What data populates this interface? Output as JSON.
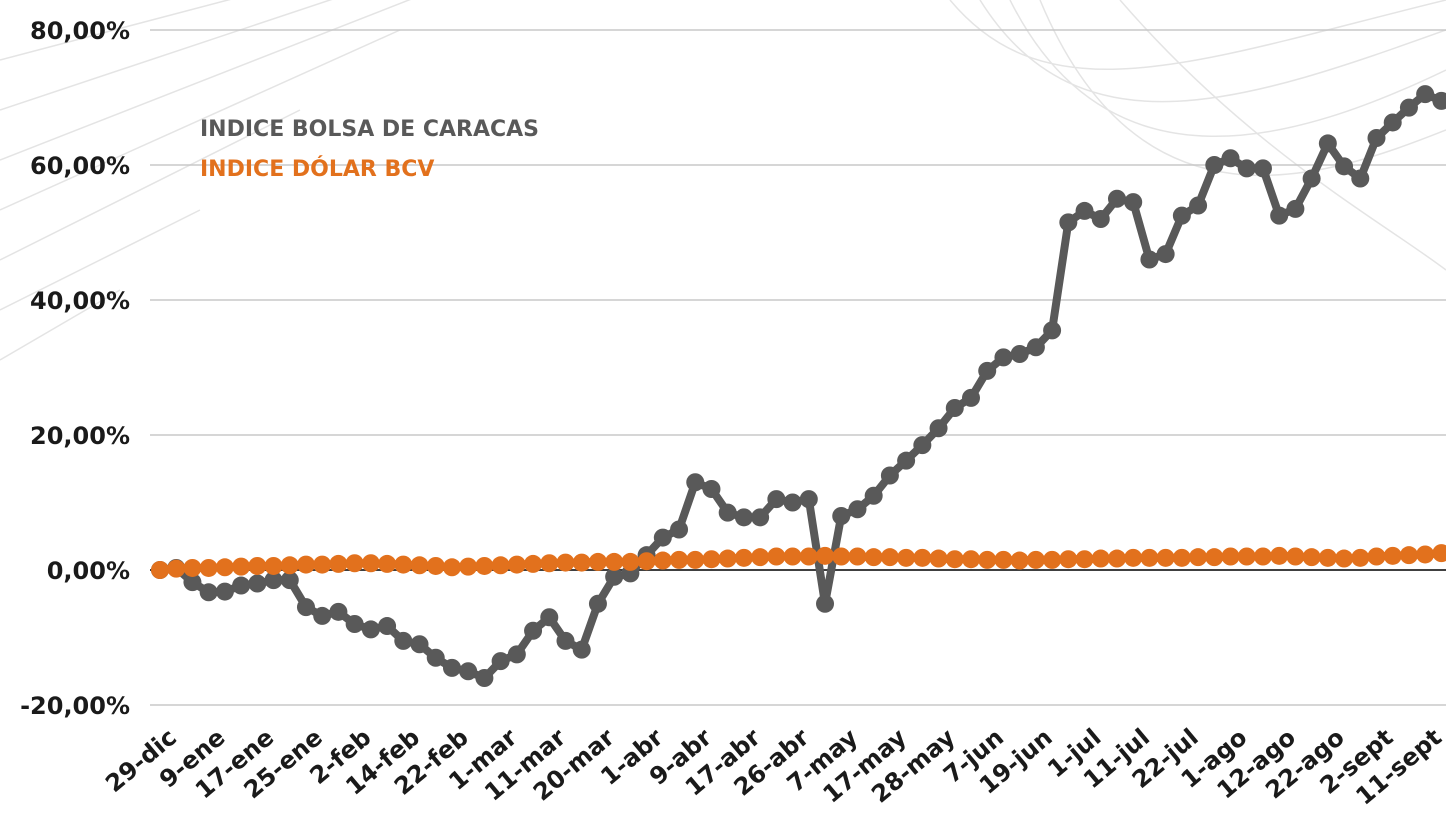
{
  "chart_data": {
    "type": "line",
    "categories": [
      "29-dic",
      null,
      null,
      "9-ene",
      null,
      null,
      "17-ene",
      null,
      null,
      "25-ene",
      null,
      null,
      "2-feb",
      null,
      null,
      "14-feb",
      null,
      null,
      "22-feb",
      null,
      null,
      "1-mar",
      null,
      null,
      "11-mar",
      null,
      null,
      "20-mar",
      null,
      null,
      "1-abr",
      null,
      null,
      "9-abr",
      null,
      null,
      "17-abr",
      null,
      null,
      "26-abr",
      null,
      null,
      "7-may",
      null,
      null,
      "17-may",
      null,
      null,
      "28-may",
      null,
      null,
      "7-jun",
      null,
      null,
      "19-jun",
      null,
      null,
      "1-jul",
      null,
      null,
      "11-jul",
      null,
      null,
      "22-jul",
      null,
      null,
      "1-ago",
      null,
      null,
      "12-ago",
      null,
      null,
      "22-ago",
      null,
      null,
      "2-sept",
      null,
      null,
      "11-sept",
      null
    ],
    "series": [
      {
        "name": "INDICE BOLSA DE CARACAS",
        "color": "#595959",
        "values": [
          0,
          0.3,
          -1.8,
          -3.3,
          -3.2,
          -2.3,
          -2,
          -1.5,
          -1.5,
          -5.5,
          -6.8,
          -6.2,
          -8,
          -8.8,
          -8.3,
          -10.5,
          -11,
          -13,
          -14.5,
          -15,
          -16,
          -13.5,
          -12.5,
          -9,
          -7,
          -10.5,
          -11.8,
          -5,
          -1,
          -0.5,
          2.2,
          4.8,
          6,
          13,
          12,
          8.5,
          7.8,
          7.8,
          10.5,
          10,
          10.5,
          -5,
          8,
          9,
          11,
          14,
          16.2,
          18.5,
          21,
          24,
          25.5,
          29.5,
          31.5,
          32,
          33,
          35.5,
          51.5,
          53.2,
          52,
          55,
          54.5,
          46,
          46.8,
          52.5,
          54,
          60,
          61,
          59.5,
          59.5,
          52.5,
          53.5,
          58,
          63.2,
          59.8,
          58,
          64,
          66.3,
          68.5,
          70.5,
          69.5
        ]
      },
      {
        "name": "INDICE DÓLAR BCV",
        "color": "#e2711d",
        "values": [
          0,
          0.2,
          0.3,
          0.3,
          0.4,
          0.5,
          0.6,
          0.6,
          0.7,
          0.8,
          0.8,
          0.9,
          1,
          1,
          0.9,
          0.8,
          0.7,
          0.6,
          0.4,
          0.5,
          0.6,
          0.7,
          0.8,
          0.9,
          1,
          1.1,
          1.1,
          1.2,
          1.2,
          1.2,
          1.3,
          1.4,
          1.5,
          1.5,
          1.6,
          1.7,
          1.8,
          1.9,
          2,
          2,
          2,
          2.1,
          2,
          2,
          1.9,
          1.9,
          1.8,
          1.8,
          1.7,
          1.6,
          1.6,
          1.5,
          1.5,
          1.4,
          1.5,
          1.5,
          1.6,
          1.6,
          1.7,
          1.7,
          1.8,
          1.8,
          1.8,
          1.8,
          1.9,
          1.9,
          2,
          2,
          2,
          2.1,
          2,
          1.9,
          1.8,
          1.7,
          1.8,
          2,
          2.1,
          2.2,
          2.3,
          2.5
        ]
      }
    ],
    "ylim": [
      -24,
      84
    ],
    "yticks": [
      {
        "value": -20,
        "label": "-20,00%"
      },
      {
        "value": 0,
        "label": "0,00%"
      },
      {
        "value": 20,
        "label": "20,00%"
      },
      {
        "value": 40,
        "label": "40,00%"
      },
      {
        "value": 60,
        "label": "60,00%"
      },
      {
        "value": 80,
        "label": "80,00%"
      }
    ],
    "grid": true,
    "legend": "top-left"
  }
}
